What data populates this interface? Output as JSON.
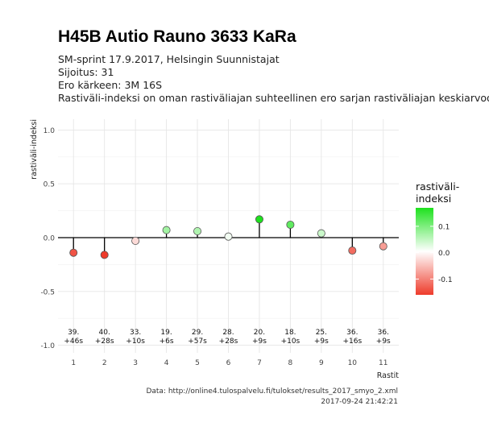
{
  "title": "H45B Autio Rauno 3633 KaRa",
  "subtitle_lines": [
    "SM-sprint 17.9.2017, Helsingin Suunnistajat",
    "Sijoitus: 31",
    "Ero kärkeen: 3M 16S",
    "Rastiväli-indeksi on oman rastiväliajan suhteellinen ero sarjan rastiväliajan keskiarvoon"
  ],
  "caption_lines": [
    "Data: http://online4.tulospalvelu.fi/tulokset/results_2017_smyo_2.xml",
    "2017-09-24 21:42:21"
  ],
  "colors": {
    "negative": "#ee3b2b",
    "mid": "#ffffff",
    "positive": "#1ee11e",
    "grid": "#e6e6e6",
    "zero_line": "#000000"
  },
  "chart_data": {
    "type": "lollipop",
    "xlabel": "Rastit",
    "ylabel": "rastiväli-indeksi",
    "ylim": [
      -1.0,
      1.0
    ],
    "yticks": [
      1.0,
      0.5,
      0.0,
      -0.5,
      -1.0
    ],
    "ytick_labels": [
      "1.0",
      "0.5",
      "0.0",
      "-0.5",
      "-1.0"
    ],
    "x": [
      1,
      2,
      3,
      4,
      5,
      6,
      7,
      8,
      9,
      10,
      11
    ],
    "values": [
      -0.14,
      -0.16,
      -0.03,
      0.07,
      0.06,
      0.01,
      0.17,
      0.12,
      0.04,
      -0.12,
      -0.08
    ],
    "annotations": [
      [
        "39.",
        "+46s"
      ],
      [
        "40.",
        "+28s"
      ],
      [
        "33.",
        "+10s"
      ],
      [
        "19.",
        "+6s"
      ],
      [
        "29.",
        "+57s"
      ],
      [
        "28.",
        "+28s"
      ],
      [
        "20.",
        "+9s"
      ],
      [
        "18.",
        "+10s"
      ],
      [
        "25.",
        "+9s"
      ],
      [
        "36.",
        "+16s"
      ],
      [
        "36.",
        "+9s"
      ]
    ],
    "legend": {
      "title_lines": [
        "rastiväli-",
        "indeksi"
      ],
      "ticks": [
        0.1,
        0.0,
        -0.1
      ],
      "tick_labels": [
        "0.1",
        "0.0",
        "-0.1"
      ],
      "range": [
        -0.16,
        0.17
      ],
      "position": "right"
    },
    "grid": true
  }
}
